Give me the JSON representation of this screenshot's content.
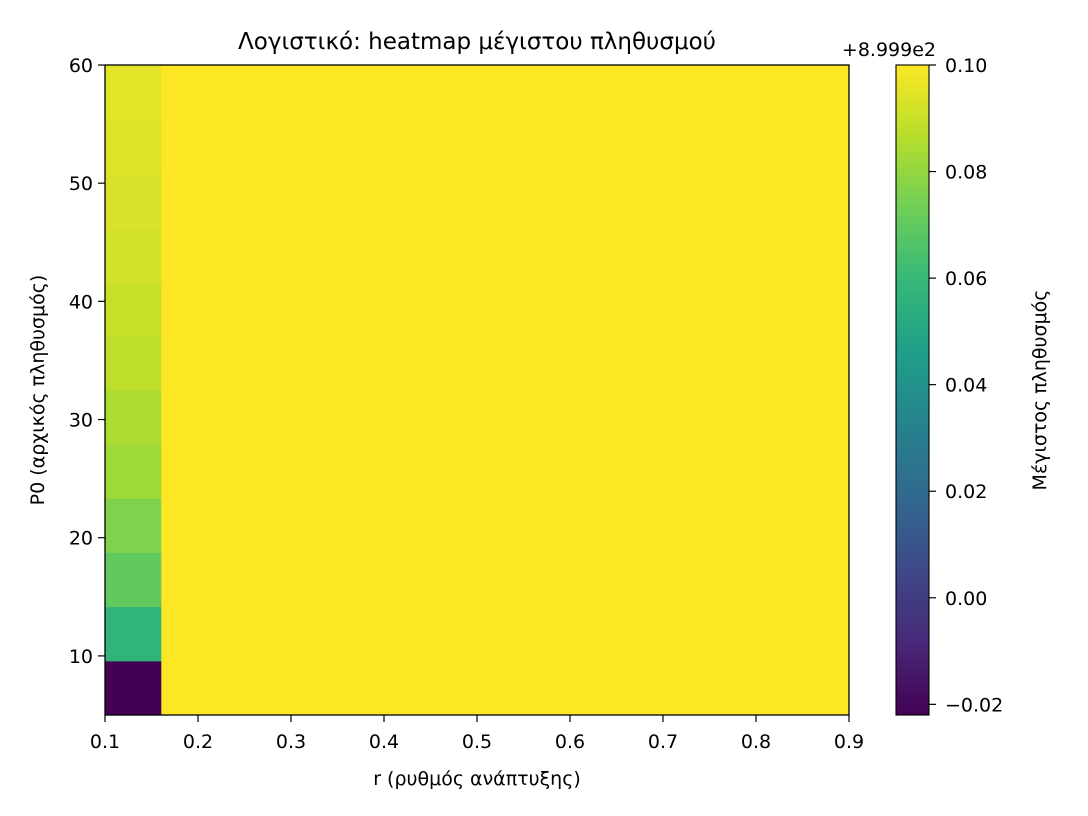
{
  "chart_data": {
    "type": "heatmap",
    "title": "Λογιστικό: heatmap μέγιστου πληθυσμού",
    "xlabel": "r (ρυθμός ανάπτυξης)",
    "ylabel": "P0 (αρχικός πληθυσμός)",
    "xlim": [
      0.1,
      0.9
    ],
    "ylim": [
      5,
      60
    ],
    "x_ticks": [
      "0.1",
      "0.2",
      "0.3",
      "0.4",
      "0.5",
      "0.6",
      "0.7",
      "0.8",
      "0.9"
    ],
    "y_ticks": [
      "10",
      "20",
      "30",
      "40",
      "50",
      "60"
    ],
    "r_cell_edges": [
      0.1,
      0.16,
      0.9
    ],
    "p0_cell_edges": [
      5,
      9.58,
      14.17,
      18.75,
      23.33,
      27.92,
      32.5,
      37.08,
      41.67,
      46.25,
      50.83,
      55.42,
      60
    ],
    "values_first_r_column": [
      -0.022,
      0.057,
      0.07,
      0.076,
      0.082,
      0.085,
      0.088,
      0.09,
      0.092,
      0.093,
      0.094,
      0.095
    ],
    "values_other_r": 0.1,
    "colormap": "viridis",
    "colorbar": {
      "label": "Μέγιστος πληθυσμός",
      "offset_label": "+8.999e2",
      "range": [
        -0.022,
        0.1
      ],
      "ticks": [
        "0.10",
        "0.08",
        "0.06",
        "0.04",
        "0.02",
        "0.00",
        "−0.02"
      ],
      "tick_values": [
        0.1,
        0.08,
        0.06,
        0.04,
        0.02,
        0.0,
        -0.02
      ]
    }
  }
}
